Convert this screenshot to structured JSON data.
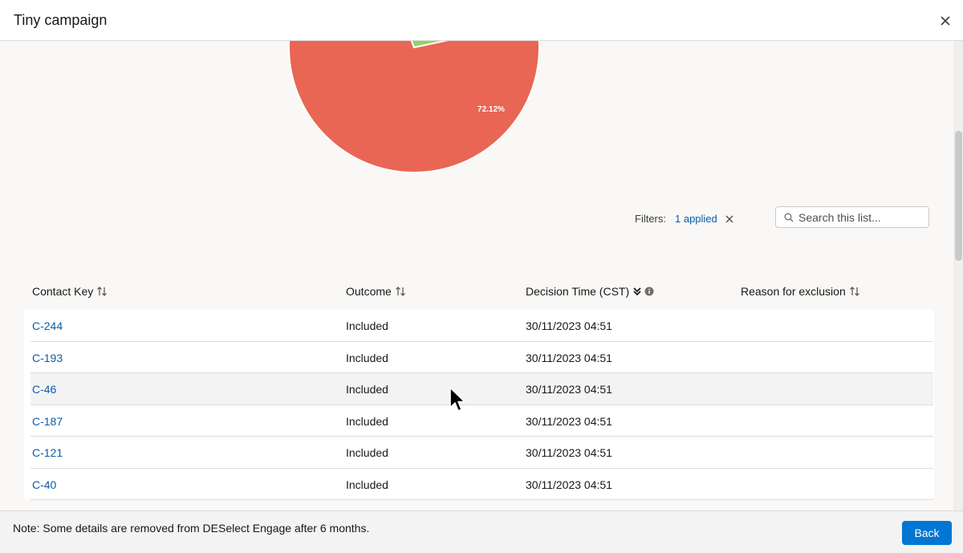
{
  "modal": {
    "title": "Tiny campaign",
    "close_icon": "close-icon"
  },
  "chart_data": {
    "type": "pie",
    "slices": [
      {
        "value": 72.12,
        "label": "72.12%",
        "color": "#e96654"
      },
      {
        "value": 27.88,
        "label": "",
        "color": "#93d25f"
      }
    ]
  },
  "filters": {
    "label": "Filters:",
    "applied": "1 applied",
    "clear_icon": "close-icon"
  },
  "search": {
    "placeholder": "Search this list...",
    "value": ""
  },
  "table": {
    "columns": [
      {
        "label": "Contact Key",
        "icon": "sort-icon"
      },
      {
        "label": "Outcome",
        "icon": "sort-icon"
      },
      {
        "label": "Decision Time (CST)",
        "icon": "sort-desc-icon",
        "info_icon": "info-icon"
      },
      {
        "label": "Reason for exclusion",
        "icon": "sort-icon"
      }
    ],
    "rows": [
      {
        "contact_key": "C-244",
        "outcome": "Included",
        "decision_time": "30/11/2023 04:51",
        "reason": ""
      },
      {
        "contact_key": "C-193",
        "outcome": "Included",
        "decision_time": "30/11/2023 04:51",
        "reason": ""
      },
      {
        "contact_key": "C-46",
        "outcome": "Included",
        "decision_time": "30/11/2023 04:51",
        "reason": ""
      },
      {
        "contact_key": "C-187",
        "outcome": "Included",
        "decision_time": "30/11/2023 04:51",
        "reason": ""
      },
      {
        "contact_key": "C-121",
        "outcome": "Included",
        "decision_time": "30/11/2023 04:51",
        "reason": ""
      },
      {
        "contact_key": "C-40",
        "outcome": "Included",
        "decision_time": "30/11/2023 04:51",
        "reason": ""
      }
    ]
  },
  "footer": {
    "note": "Note: Some details are removed from DESelect Engage after 6 months.",
    "back_label": "Back"
  },
  "colors": {
    "accent": "#0176d3",
    "link": "#0b5cab",
    "pie_red": "#e96654",
    "pie_green": "#93d25f"
  }
}
